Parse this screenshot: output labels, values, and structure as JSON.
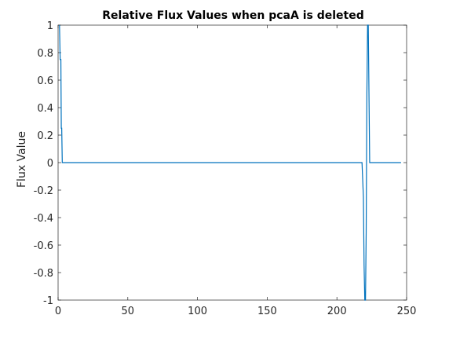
{
  "chart_data": {
    "type": "line",
    "title": "Relative Flux Values when pcaA is deleted",
    "xlabel": "",
    "ylabel": "Flux Value",
    "xlim": [
      0,
      250
    ],
    "ylim": [
      -1,
      1
    ],
    "xticks": [
      0,
      50,
      100,
      150,
      200,
      250
    ],
    "yticks": [
      -1,
      -0.8,
      -0.6,
      -0.4,
      -0.2,
      0,
      0.2,
      0.4,
      0.6,
      0.8,
      1
    ],
    "xtick_labels": [
      "0",
      "50",
      "100",
      "150",
      "200",
      "250"
    ],
    "ytick_labels": [
      "-1",
      "-0.8",
      "-0.6",
      "-0.4",
      "-0.2",
      "0",
      "0.2",
      "0.4",
      "0.6",
      "0.8",
      "1"
    ],
    "grid": false,
    "box": true,
    "series": [
      {
        "color": "#0072BD",
        "x": [
          1,
          1.5,
          2,
          2.3,
          2.6,
          3,
          3.3,
          4,
          50,
          100,
          150,
          200,
          218,
          219,
          219.5,
          220,
          220.5,
          221,
          221.5,
          222,
          222.5,
          223,
          223.5,
          224,
          225,
          246
        ],
        "y": [
          1,
          0.75,
          0.75,
          0.25,
          0.25,
          0,
          0,
          0,
          0,
          0,
          0,
          0,
          0,
          -0.25,
          -0.75,
          -1,
          -1,
          -0.5,
          0.5,
          1,
          1,
          0.5,
          0,
          0,
          0,
          0
        ]
      }
    ]
  }
}
